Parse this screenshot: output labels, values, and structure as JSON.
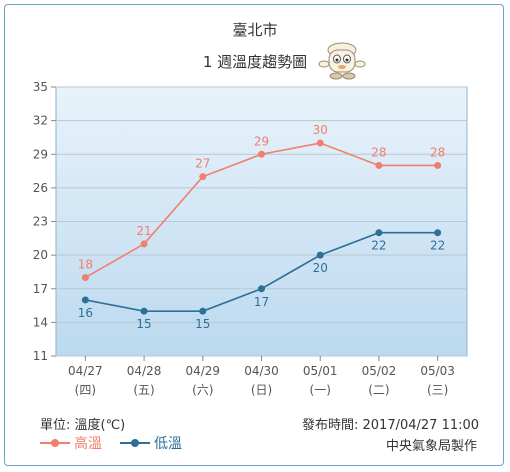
{
  "title": "臺北市",
  "subtitle": "1 週溫度趨勢圖",
  "footer": {
    "unit_label": "單位: 溫度(℃)",
    "published": "發布時間: 2017/04/27 11:00",
    "credit": "中央氣象局製作"
  },
  "colors": {
    "high": "#f07f6c",
    "low": "#2e6f98",
    "plot_top": "#e8f3fb",
    "plot_bottom": "#bcd9ef"
  },
  "chart_data": {
    "type": "line",
    "categories": [
      "04/27",
      "04/28",
      "04/29",
      "04/30",
      "05/01",
      "05/02",
      "05/03"
    ],
    "weekdays": [
      "(四)",
      "(五)",
      "(六)",
      "(日)",
      "(一)",
      "(二)",
      "(三)"
    ],
    "yticks": [
      11,
      14,
      17,
      20,
      23,
      26,
      29,
      32,
      35
    ],
    "ylim": [
      11,
      35
    ],
    "grid": true,
    "legend": "bottom-left",
    "series": [
      {
        "name": "高溫",
        "values": [
          18,
          21,
          27,
          29,
          30,
          28,
          28
        ]
      },
      {
        "name": "低溫",
        "values": [
          16,
          15,
          15,
          17,
          20,
          22,
          22
        ]
      }
    ]
  }
}
